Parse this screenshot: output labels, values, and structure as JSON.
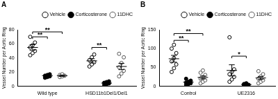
{
  "chart_data": [
    {
      "type": "scatter",
      "title": "A",
      "y_label": "Vessel Number per Aortic Ring",
      "categories": [
        "Wild type",
        "HSD11b1Del1/Del1"
      ],
      "ylim": [
        0,
        80
      ],
      "yticks": [
        0,
        20,
        40,
        60,
        80
      ],
      "grid": false,
      "legend": "top-right",
      "series": [
        {
          "name": "Vehicle",
          "color": "#000000",
          "marker": "open_circle",
          "values": [
            [
              44,
              47,
              50,
              55,
              58,
              62,
              70
            ],
            [
              28,
              31,
              34,
              37,
              41,
              45
            ]
          ],
          "mean": [
            55,
            36
          ],
          "error": [
            4,
            3
          ]
        },
        {
          "name": "Corticosterone",
          "color": "#000000",
          "marker": "filled_circle",
          "values": [
            [
              12,
              13,
              14,
              15,
              16,
              17
            ],
            [
              2,
              3,
              4,
              5,
              6,
              7
            ]
          ],
          "mean": [
            15,
            4.5
          ],
          "error": [
            1,
            1
          ]
        },
        {
          "name": "11DHC",
          "color": "#555555",
          "marker": "open_circle",
          "values": [
            [
              13,
              14,
              15,
              16,
              17
            ],
            [
              14,
              18,
              22,
              27,
              33,
              41,
              46
            ]
          ],
          "mean": [
            15,
            28
          ],
          "error": [
            1,
            4.5
          ]
        }
      ],
      "annotations": [
        {
          "text": "**",
          "category": 0,
          "from": "Vehicle",
          "to": "Corticosterone",
          "y": 70
        },
        {
          "text": "**",
          "category": 0,
          "from": "Vehicle",
          "to": "11DHC",
          "y": 77
        },
        {
          "text": "**",
          "category": 1,
          "from": "Vehicle",
          "to": "Corticosterone",
          "y": 55
        }
      ]
    },
    {
      "type": "scatter",
      "title": "B",
      "y_label": "Vessel Number per Aortic Ring",
      "categories": [
        "Control",
        "UE2316"
      ],
      "ylim": [
        0,
        150
      ],
      "yticks": [
        0,
        50,
        100,
        150
      ],
      "grid": false,
      "legend": "top-right",
      "series": [
        {
          "name": "Vehicle",
          "color": "#000000",
          "marker": "open_circle",
          "values": [
            [
              38,
              48,
              58,
              66,
              75,
              88,
              100,
              110
            ],
            [
              12,
              18,
              25,
              32,
              38,
              45,
              130
            ]
          ],
          "mean": [
            73,
            42
          ],
          "error": [
            9,
            15
          ]
        },
        {
          "name": "Corticosterone",
          "color": "#000000",
          "marker": "filled_circle",
          "values": [
            [
              4,
              6,
              8,
              10,
              12,
              15,
              20
            ],
            [
              2,
              3,
              4,
              6,
              8
            ]
          ],
          "mean": [
            11,
            4.6
          ],
          "error": [
            2,
            1
          ]
        },
        {
          "name": "11DHC",
          "color": "#555555",
          "marker": "open_circle",
          "values": [
            [
              8,
              12,
              16,
              20,
              24,
              30,
              36,
              42
            ],
            [
              8,
              12,
              16,
              20,
              26,
              32,
              40
            ]
          ],
          "mean": [
            23.5,
            22
          ],
          "error": [
            4,
            4
          ]
        }
      ],
      "annotations": [
        {
          "text": "**",
          "category": 0,
          "from": "Vehicle",
          "to": "Corticosterone",
          "y": 122
        },
        {
          "text": "**",
          "category": 0,
          "from": "Vehicle",
          "to": "11DHC",
          "y": 140
        },
        {
          "text": "*",
          "category": 1,
          "from": "Vehicle",
          "to": "Corticosterone",
          "y": 80
        }
      ]
    }
  ]
}
